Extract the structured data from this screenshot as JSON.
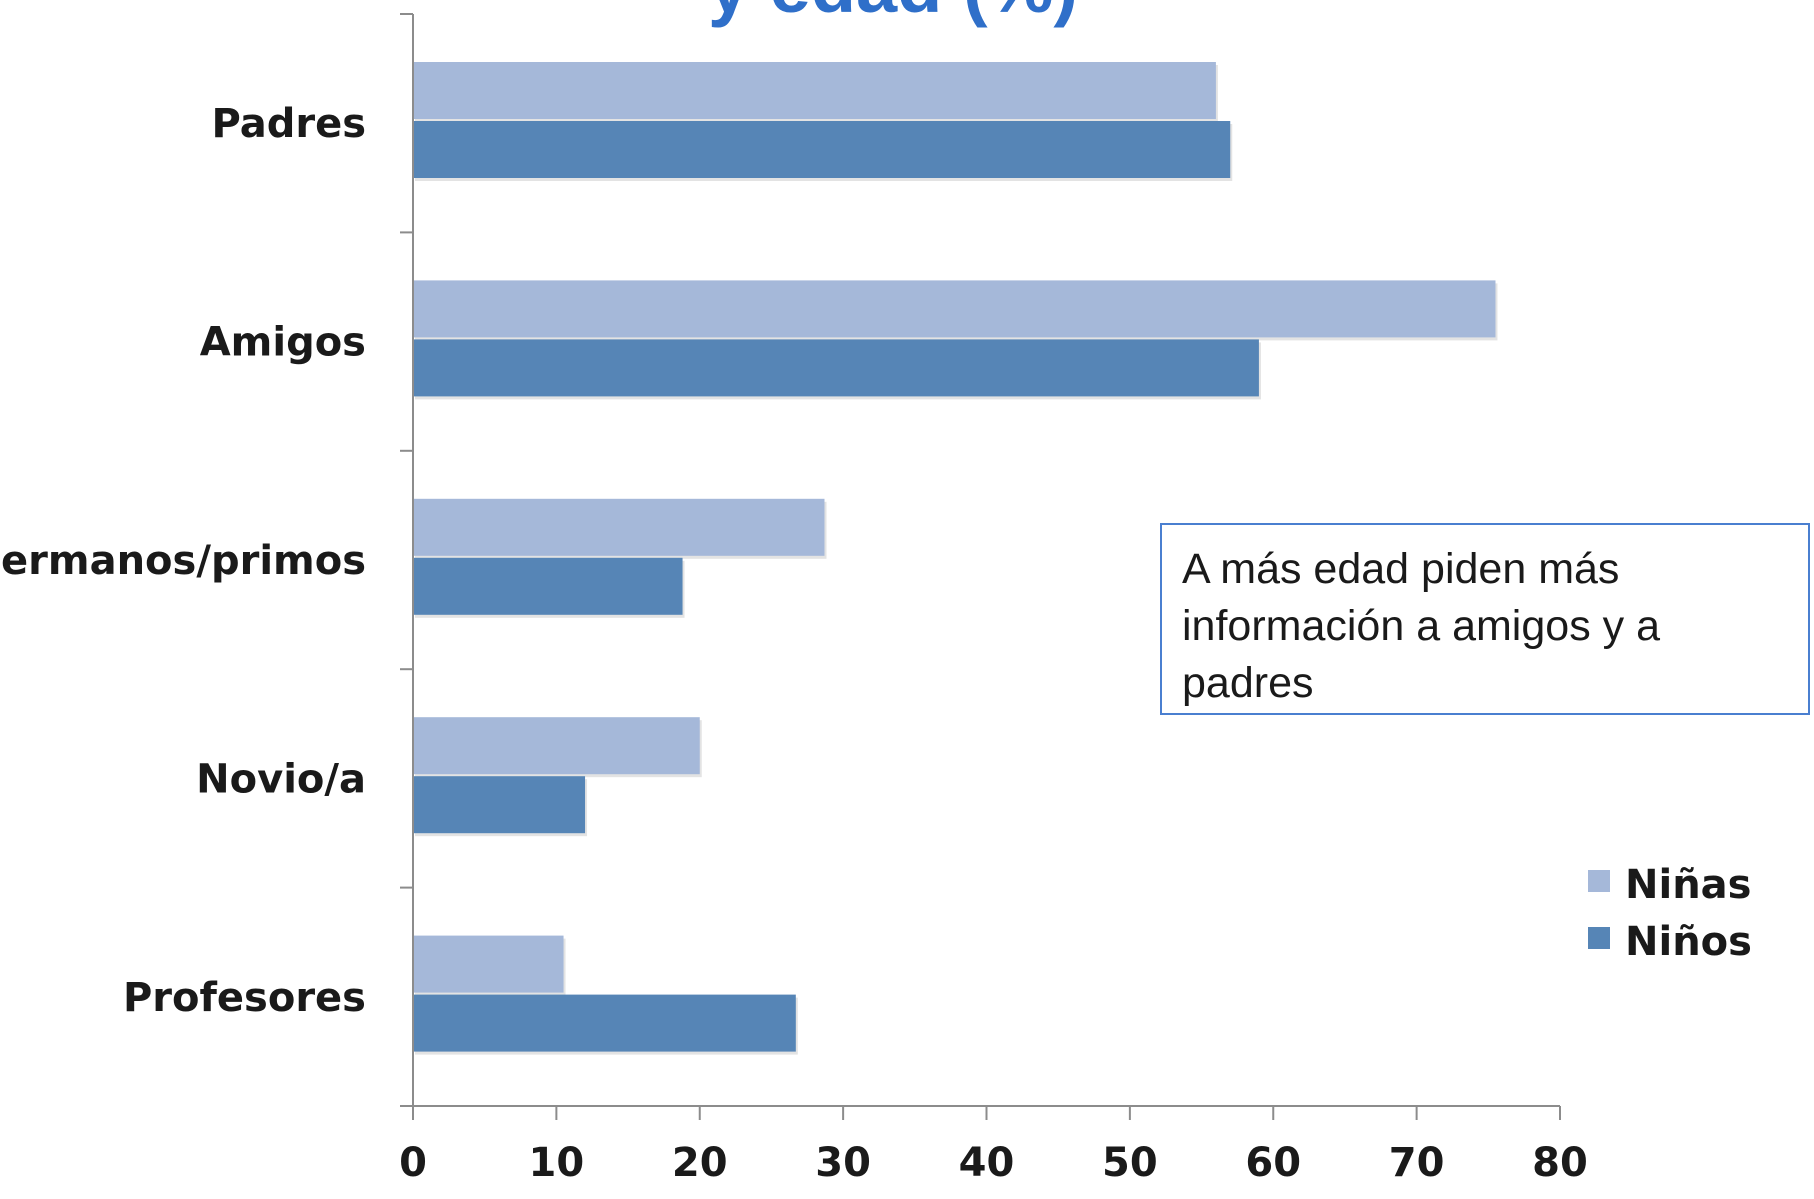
{
  "chart_data": {
    "type": "bar",
    "orientation": "horizontal",
    "title": "y edad (%)",
    "categories": [
      "Padres",
      "Amigos",
      "Hermanos/primos",
      "Novio/a",
      "Profesores"
    ],
    "series": [
      {
        "name": "Niñas",
        "color": "#a5b8d9",
        "values": [
          56,
          75.5,
          28.7,
          20,
          10.5
        ]
      },
      {
        "name": "Niños",
        "color": "#5685b6",
        "values": [
          57,
          59,
          18.8,
          12,
          26.7
        ]
      }
    ],
    "xlim": [
      0,
      80
    ],
    "xticks": [
      0,
      10,
      20,
      30,
      40,
      50,
      60,
      70,
      80
    ],
    "grid": false,
    "legend_position": "right",
    "annotation": "A más edad piden más información a amigos y a padres"
  }
}
